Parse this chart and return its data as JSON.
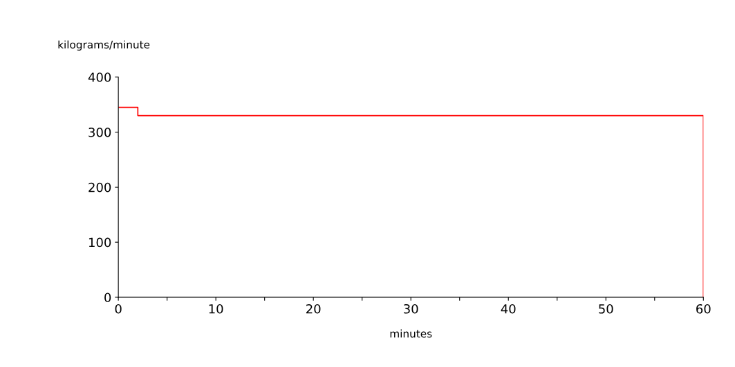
{
  "chart_data": {
    "type": "step",
    "ylabel": "kilograms/minute",
    "xlabel": "minutes",
    "x": [
      0,
      2,
      60,
      60
    ],
    "series": [
      {
        "color": "#ff0000",
        "values": [
          345,
          330,
          330,
          0
        ]
      }
    ],
    "xlim": [
      0,
      60
    ],
    "ylim": [
      0,
      400
    ],
    "xticks": [
      0,
      {
        "value": 5,
        "label": null
      },
      10,
      {
        "value": 15,
        "label": null
      },
      20,
      {
        "value": 25,
        "label": null
      },
      30,
      {
        "value": 35,
        "label": null
      },
      40,
      {
        "value": 45,
        "label": null
      },
      50,
      {
        "value": 55,
        "label": null
      },
      60
    ],
    "yticks": [
      0,
      100,
      200,
      300,
      400
    ],
    "grid": false,
    "legend": false
  }
}
